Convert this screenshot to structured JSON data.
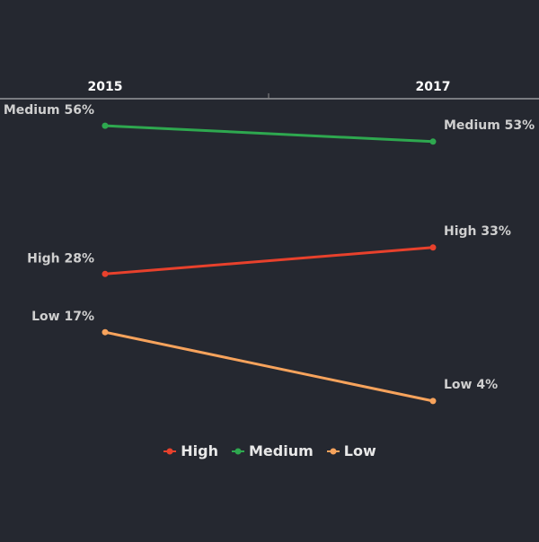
{
  "chart_data": {
    "type": "line",
    "categories": [
      "2015",
      "2017"
    ],
    "series": [
      {
        "name": "High",
        "values": [
          28,
          33
        ],
        "color": "#e8412c",
        "labels": [
          "High 28%",
          "High 33%"
        ]
      },
      {
        "name": "Medium",
        "values": [
          56,
          53
        ],
        "color": "#2ea84f",
        "labels": [
          "Medium 56%",
          "Medium 53%"
        ]
      },
      {
        "name": "Low",
        "values": [
          17,
          4
        ],
        "color": "#f7a35c",
        "labels": [
          "Low 17%",
          "Low 4%"
        ]
      }
    ],
    "legend_position": "bottom",
    "axis_position": "top",
    "grid": false,
    "background": "#252830"
  }
}
